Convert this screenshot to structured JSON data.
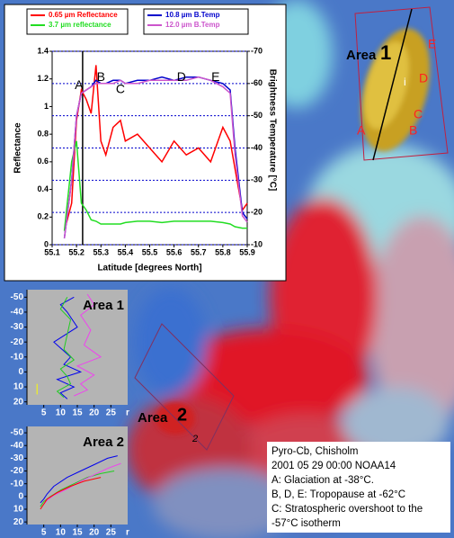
{
  "chart_data": [
    {
      "type": "line",
      "xlabel": "Latitude [degrees North]",
      "ylabel": "Reflectance",
      "y2label": "Brightness Temperature [°C]",
      "x": [
        55.15,
        55.18,
        55.2,
        55.22,
        55.24,
        55.26,
        55.28,
        55.3,
        55.32,
        55.35,
        55.38,
        55.4,
        55.45,
        55.5,
        55.55,
        55.6,
        55.65,
        55.7,
        55.75,
        55.8,
        55.83,
        55.85,
        55.88,
        55.9
      ],
      "series": [
        {
          "name": "0.65 µm Reflectance",
          "color": "#ff0000",
          "values": [
            0.1,
            0.3,
            0.9,
            1.12,
            1.05,
            0.95,
            1.3,
            0.75,
            0.65,
            0.85,
            0.9,
            0.75,
            0.8,
            0.7,
            0.6,
            0.75,
            0.65,
            0.7,
            0.6,
            0.85,
            0.75,
            0.55,
            0.25,
            0.3
          ]
        },
        {
          "name": "3.7 µm reflectance",
          "color": "#22dd22",
          "values": [
            0.1,
            0.6,
            0.75,
            0.3,
            0.25,
            0.18,
            0.17,
            0.15,
            0.15,
            0.15,
            0.15,
            0.16,
            0.17,
            0.17,
            0.16,
            0.17,
            0.17,
            0.17,
            0.17,
            0.16,
            0.15,
            0.13,
            0.12,
            0.12
          ]
        },
        {
          "name": "10.8 µm B.Temp",
          "color": "#0000cc",
          "axis": "y2",
          "values": [
            -12,
            -30,
            -50,
            -57,
            -58,
            -59,
            -61,
            -60,
            -60,
            -61,
            -61,
            -60,
            -61,
            -61,
            -62,
            -61,
            -62,
            -62,
            -61,
            -60,
            -58,
            -40,
            -20,
            -18
          ]
        },
        {
          "name": "12.0 µm B.Temp",
          "color": "#cc55cc",
          "axis": "y2",
          "values": [
            -12,
            -30,
            -50,
            -57,
            -58,
            -59,
            -60,
            -60,
            -60,
            -60,
            -61,
            -60,
            -60,
            -61,
            -61,
            -61,
            -61,
            -62,
            -61,
            -59,
            -57,
            -38,
            -19,
            -17
          ]
        }
      ],
      "xlim": [
        55.1,
        55.9
      ],
      "xticks": [
        55.1,
        55.2,
        55.3,
        55.4,
        55.5,
        55.6,
        55.7,
        55.8,
        55.9
      ],
      "ylim": [
        0,
        1.4
      ],
      "yticks": [
        0,
        0.2,
        0.4,
        0.6,
        0.8,
        1,
        1.2,
        1.4
      ],
      "y2lim": [
        -10,
        -70
      ],
      "y2ticks": [
        -10,
        -20,
        -30,
        -40,
        -50,
        -60,
        -70
      ],
      "grid": "y2",
      "grid_color": "#0000cc",
      "vlines": [
        55.225
      ],
      "annotations": [
        {
          "text": "A",
          "x": 55.21,
          "y": 1.15
        },
        {
          "text": "B",
          "x": 55.3,
          "y": 1.21
        },
        {
          "text": "C",
          "x": 55.38,
          "y": 1.12
        },
        {
          "text": "D",
          "x": 55.63,
          "y": 1.21
        },
        {
          "text": "E",
          "x": 55.77,
          "y": 1.21
        }
      ]
    },
    {
      "type": "line",
      "title": "Area 1",
      "xlabel": "r",
      "background": "#b4b4b4",
      "series": [
        {
          "color": "#0000ee",
          "x": [
            12,
            10,
            14,
            9,
            16,
            11,
            13,
            8,
            15,
            12,
            10,
            14
          ],
          "values": [
            18,
            14,
            10,
            5,
            0,
            -5,
            -10,
            -20,
            -30,
            -40,
            -45,
            -50
          ]
        },
        {
          "color": "#22cc22",
          "x": [
            11,
            9,
            13,
            12,
            10,
            14,
            11,
            12,
            13,
            10,
            12
          ],
          "values": [
            17,
            13,
            8,
            3,
            -2,
            -8,
            -15,
            -25,
            -35,
            -42,
            -50
          ]
        },
        {
          "color": "#ee44ee",
          "x": [
            14,
            18,
            16,
            20,
            15,
            22,
            17,
            19,
            16,
            20,
            18
          ],
          "values": [
            16,
            12,
            8,
            2,
            -4,
            -10,
            -18,
            -28,
            -38,
            -45,
            -52
          ]
        },
        {
          "color": "#ffff00",
          "x": [
            3,
            3
          ],
          "values": [
            8,
            15
          ]
        }
      ],
      "xlim": [
        0,
        30
      ],
      "xticks": [
        5,
        10,
        15,
        20,
        25
      ],
      "ylim": [
        22,
        -55
      ],
      "yticks": [
        -50,
        -40,
        -30,
        -20,
        -10,
        0,
        10,
        20
      ]
    },
    {
      "type": "line",
      "title": "Area 2",
      "xlabel": "r",
      "background": "#b4b4b4",
      "series": [
        {
          "color": "#0000ee",
          "x": [
            4,
            5,
            6,
            8,
            12,
            16,
            20,
            24,
            27
          ],
          "values": [
            5,
            2,
            -2,
            -8,
            -15,
            -20,
            -25,
            -30,
            -32
          ]
        },
        {
          "color": "#22cc22",
          "x": [
            4,
            5,
            7,
            10,
            14,
            18,
            22,
            26
          ],
          "values": [
            8,
            4,
            0,
            -5,
            -10,
            -15,
            -18,
            -20
          ]
        },
        {
          "color": "#ee44ee",
          "x": [
            5,
            6,
            8,
            12,
            16,
            20,
            24,
            28
          ],
          "values": [
            6,
            3,
            -1,
            -6,
            -12,
            -17,
            -22,
            -26
          ]
        },
        {
          "color": "#ff0000",
          "x": [
            4,
            5,
            6,
            9,
            13,
            17,
            22
          ],
          "values": [
            10,
            6,
            2,
            -3,
            -8,
            -12,
            -15
          ]
        }
      ],
      "xlim": [
        0,
        30
      ],
      "xticks": [
        5,
        10,
        15,
        20,
        25
      ],
      "ylim": [
        22,
        -55
      ],
      "yticks": [
        -50,
        -40,
        -30,
        -20,
        -10,
        0,
        10,
        20
      ]
    }
  ],
  "image_labels": {
    "area1": "Area",
    "area1_num": "1",
    "letters": [
      "A",
      "B",
      "C",
      "D",
      "E"
    ],
    "mark_i": "i",
    "area2": "Area",
    "area2_num": "2",
    "mark2": "2"
  },
  "caption": [
    "Pyro-Cb, Chisholm",
    "2001 05 29 00:00 NOAA14",
    "A: Glaciation at -38°C.",
    "B, D, E: Tropopause at -62°C",
    "C: Stratospheric overshoot to the",
    "-57°C isotherm"
  ]
}
